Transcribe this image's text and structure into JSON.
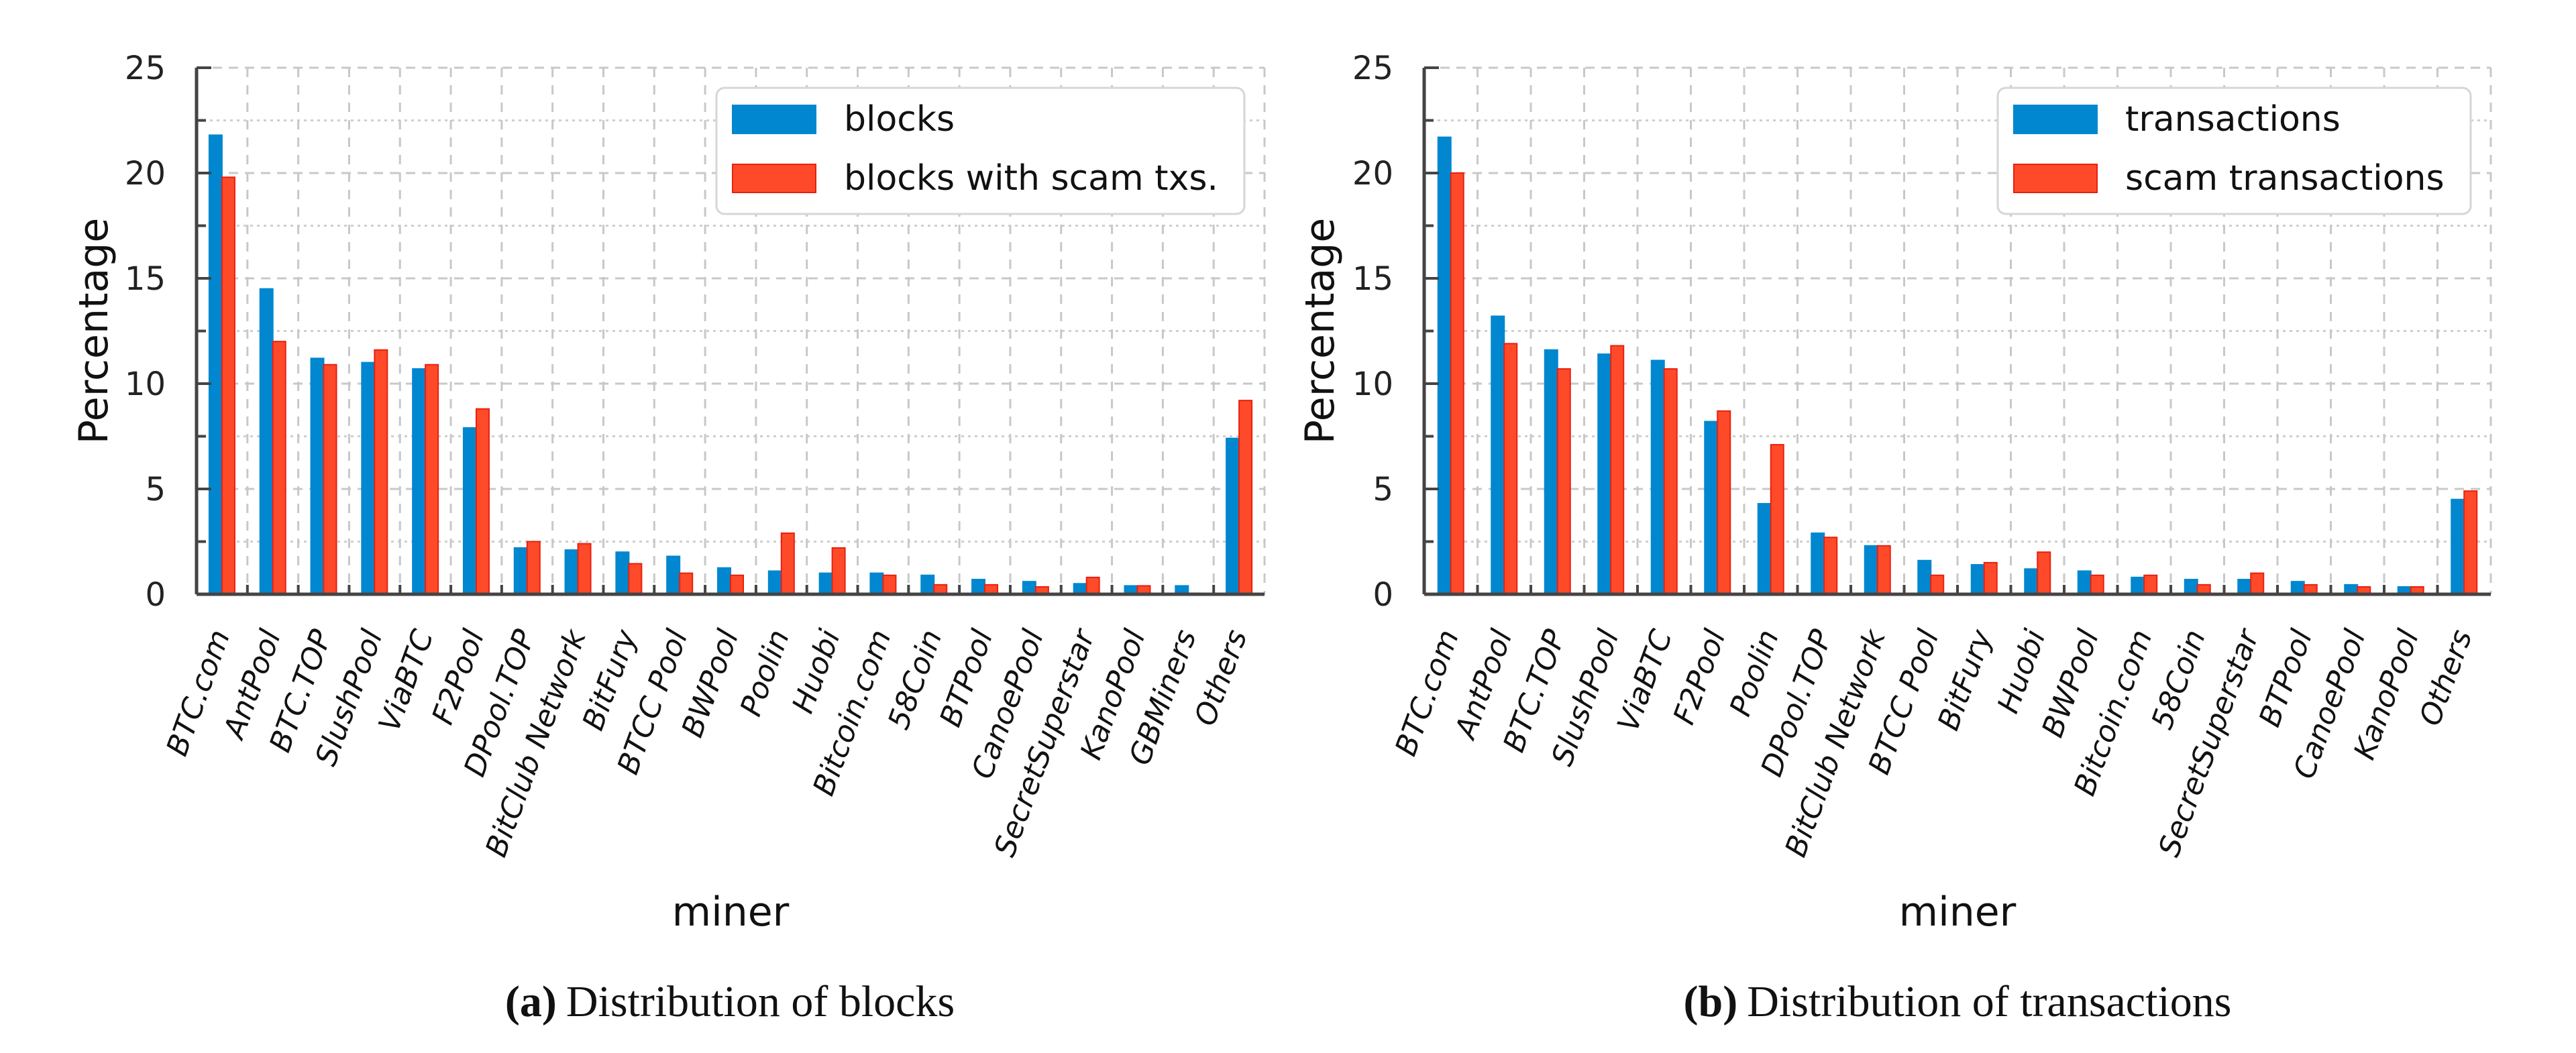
{
  "chart_data": [
    {
      "type": "bar",
      "id": "blocks",
      "caption_prefix": "(a)",
      "caption": "Distribution of blocks",
      "xlabel": "miner",
      "ylabel": "Percentage",
      "ylim": [
        0,
        25
      ],
      "yticks": [
        0,
        5,
        10,
        15,
        20,
        25
      ],
      "grid": true,
      "legend_position": "top-right",
      "categories": [
        "BTC.com",
        "AntPool",
        "BTC.TOP",
        "SlushPool",
        "ViaBTC",
        "F2Pool",
        "DPool.TOP",
        "BitClub Network",
        "BitFury",
        "BTCC Pool",
        "BWPool",
        "Poolin",
        "Huobi",
        "Bitcoin.com",
        "58Coin",
        "BTPool",
        "CanoePool",
        "SecretSuperstar",
        "KanoPool",
        "GBMiners",
        "Others"
      ],
      "series": [
        {
          "name": "blocks",
          "color": "#0087cf",
          "values": [
            21.8,
            14.5,
            11.2,
            11.0,
            10.7,
            7.9,
            2.2,
            2.1,
            2.0,
            1.8,
            1.25,
            1.1,
            1.0,
            1.0,
            0.9,
            0.7,
            0.6,
            0.5,
            0.4,
            0.4,
            7.4
          ]
        },
        {
          "name": "blocks with scam txs.",
          "color": "#ff4a2a",
          "values": [
            19.8,
            12.0,
            10.9,
            11.6,
            10.9,
            8.8,
            2.5,
            2.4,
            1.45,
            1.0,
            0.9,
            2.9,
            2.2,
            0.9,
            0.45,
            0.45,
            0.35,
            0.8,
            0.4,
            0.05,
            9.2
          ]
        }
      ]
    },
    {
      "type": "bar",
      "id": "transactions",
      "caption_prefix": "(b)",
      "caption": "Distribution of transactions",
      "xlabel": "miner",
      "ylabel": "Percentage",
      "ylim": [
        0,
        25
      ],
      "yticks": [
        0,
        5,
        10,
        15,
        20,
        25
      ],
      "grid": true,
      "legend_position": "top-right",
      "categories": [
        "BTC.com",
        "AntPool",
        "BTC.TOP",
        "SlushPool",
        "ViaBTC",
        "F2Pool",
        "Poolin",
        "DPool.TOP",
        "BitClub Network",
        "BTCC Pool",
        "BitFury",
        "Huobi",
        "BWPool",
        "Bitcoin.com",
        "58Coin",
        "SecretSuperstar",
        "BTPool",
        "CanoePool",
        "KanoPool",
        "Others"
      ],
      "series": [
        {
          "name": "transactions",
          "color": "#0087cf",
          "values": [
            21.7,
            13.2,
            11.6,
            11.4,
            11.1,
            8.2,
            4.3,
            2.9,
            2.3,
            1.6,
            1.4,
            1.2,
            1.1,
            0.8,
            0.7,
            0.7,
            0.6,
            0.45,
            0.35,
            4.5
          ]
        },
        {
          "name": "scam transactions",
          "color": "#ff4a2a",
          "values": [
            20.0,
            11.9,
            10.7,
            11.8,
            10.7,
            8.7,
            7.1,
            2.7,
            2.3,
            0.9,
            1.5,
            2.0,
            0.9,
            0.9,
            0.45,
            1.0,
            0.45,
            0.35,
            0.35,
            4.9
          ]
        }
      ]
    }
  ]
}
